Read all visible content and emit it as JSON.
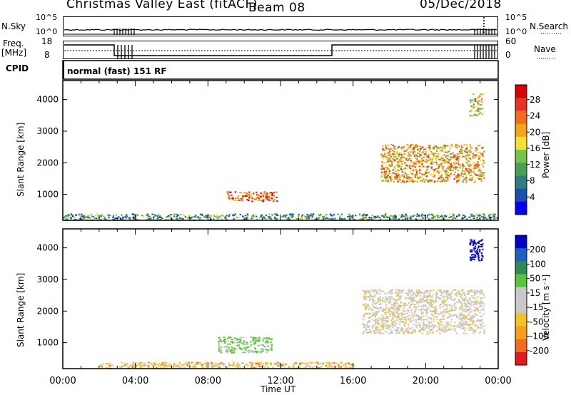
{
  "header": {
    "title": "Christmas Valley East (fitACF)",
    "beam": "Beam 08",
    "date": "05/Dec/2018"
  },
  "top_panels": {
    "nsky_label": "N.Sky",
    "nsky_ticks": [
      "10^5",
      "10^0"
    ],
    "nsearch_label": "N.Search",
    "nsearch_ticks": [
      "10^5",
      "10^0"
    ],
    "freq_label": "Freq.",
    "freq_unit": "[MHz]",
    "freq_ticks": [
      "18",
      "8"
    ],
    "nave_label": "Nave",
    "nave_ticks": [
      "60",
      "0"
    ],
    "cpid_label": "CPID",
    "cpid_text": "normal (fast) 151 RF"
  },
  "colors": {
    "power_scale": [
      "#0000ff",
      "#1b4faf",
      "#2f7d80",
      "#4a9f50",
      "#79c149",
      "#f3e22d",
      "#f7a21b",
      "#f46c1d",
      "#e53421",
      "#d90000"
    ],
    "velocity_scale": [
      "#0000c8",
      "#1f5fc0",
      "#2e8b57",
      "#5bc43d",
      "#c8c8c8",
      "#c8c8c8",
      "#f6c127",
      "#f7a01b",
      "#f46c1d",
      "#e41a1c"
    ]
  },
  "chart_data": [
    {
      "type": "heatmap",
      "name": "power",
      "ylabel": "Slant Range [km]",
      "yticks": [
        "1000",
        "2000",
        "3000",
        "4000"
      ],
      "colorbar_label": "Power [dB]",
      "colorbar_ticks": [
        "4",
        "8",
        "12",
        "16",
        "20",
        "24",
        "28"
      ],
      "xticks": [
        "00:00",
        "04:00",
        "08:00",
        "12:00",
        "16:00",
        "20:00",
        "00:00"
      ],
      "ylim": [
        180,
        4600
      ],
      "regions": [
        {
          "x": [
            9.0,
            11.8
          ],
          "y": [
            800,
            1100
          ],
          "value": 24
        },
        {
          "x": [
            17.5,
            23.2
          ],
          "y": [
            1400,
            2600
          ],
          "value": 20
        },
        {
          "x": [
            22.4,
            23.1
          ],
          "y": [
            3500,
            4200
          ],
          "value": 16
        },
        {
          "x": [
            0.0,
            24.0
          ],
          "y": [
            200,
            400
          ],
          "value": 10
        }
      ]
    },
    {
      "type": "heatmap",
      "name": "velocity",
      "ylabel": "Slant Range [km]",
      "yticks": [
        "1000",
        "2000",
        "3000",
        "4000"
      ],
      "colorbar_label": "Velocity [m s⁻¹]",
      "colorbar_ticks": [
        "200",
        "100",
        "50",
        "15",
        "-15",
        "-50",
        "-100",
        "-200"
      ],
      "xticks": [
        "00:00",
        "04:00",
        "08:00",
        "12:00",
        "16:00",
        "20:00",
        "00:00"
      ],
      "xlabel": "Time UT",
      "ylim": [
        180,
        4600
      ],
      "regions": [
        {
          "x": [
            8.5,
            11.5
          ],
          "y": [
            700,
            1200
          ],
          "value": 40
        },
        {
          "x": [
            16.5,
            23.2
          ],
          "y": [
            1300,
            2700
          ],
          "value": 0
        },
        {
          "x": [
            22.4,
            23.1
          ],
          "y": [
            3600,
            4300
          ],
          "value": 220
        },
        {
          "x": [
            2.0,
            16.0
          ],
          "y": [
            200,
            400
          ],
          "value": -30
        }
      ]
    }
  ]
}
